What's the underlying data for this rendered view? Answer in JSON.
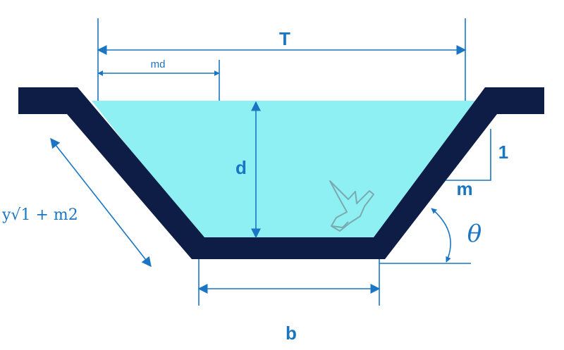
{
  "colors": {
    "channel": "#0d1d45",
    "water": "#8ef0f2",
    "dimension": "#1a76c2",
    "bird": "#7aaab0"
  },
  "labels": {
    "top_width": "T",
    "side_projection": "md",
    "depth": "d",
    "bottom_width": "b",
    "slope_vertical": "1",
    "slope_horizontal": "m",
    "side_length": "y√1 + m2",
    "angle": "θ"
  },
  "icons": {
    "bird": "dove-icon"
  }
}
